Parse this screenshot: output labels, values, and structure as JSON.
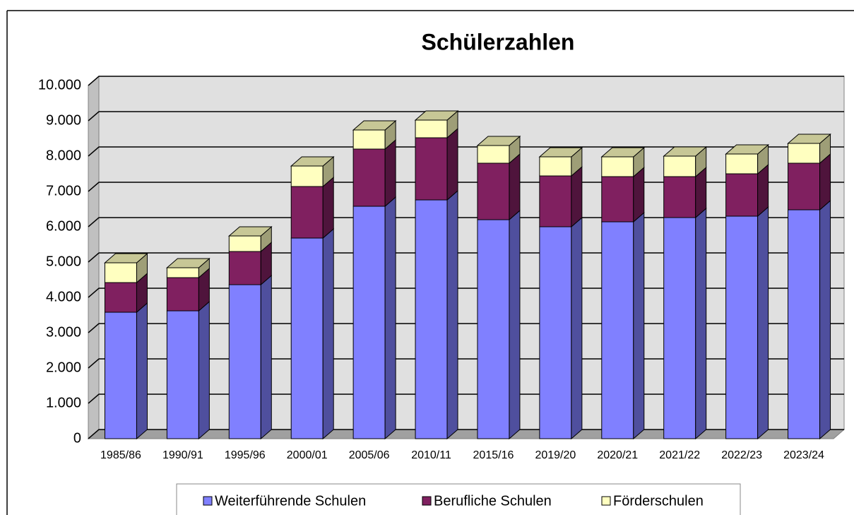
{
  "chart_data": {
    "type": "bar3d_stacked",
    "title": "Schülerzahlen",
    "categories": [
      "1985/86",
      "1990/91",
      "1995/96",
      "2000/01",
      "2005/06",
      "2010/11",
      "2015/16",
      "2019/20",
      "2020/21",
      "2021/22",
      "2022/23",
      "2023/24"
    ],
    "series": [
      {
        "name": "Weiterführende Schulen",
        "color": "#8080ff",
        "values": [
          3580,
          3620,
          4360,
          5680,
          6580,
          6760,
          6200,
          6000,
          6140,
          6260,
          6300,
          6480
        ]
      },
      {
        "name": "Berufliche Schulen",
        "color": "#802060",
        "values": [
          840,
          940,
          940,
          1460,
          1620,
          1760,
          1600,
          1440,
          1280,
          1160,
          1200,
          1320
        ]
      },
      {
        "name": "Förderschulen",
        "color": "#ffffc0",
        "values": [
          560,
          280,
          440,
          580,
          540,
          500,
          500,
          540,
          560,
          580,
          560,
          560
        ]
      }
    ],
    "ylim": [
      0,
      10000
    ],
    "yticks": [
      0,
      {
        "value": 1000,
        "label": "1.000"
      },
      {
        "value": 2000,
        "label": "2.000"
      },
      {
        "value": 3000,
        "label": "3.000"
      },
      {
        "value": 4000,
        "label": "4.000"
      },
      {
        "value": 5000,
        "label": "5.000"
      },
      {
        "value": 6000,
        "label": "6.000"
      },
      {
        "value": 7000,
        "label": "7.000"
      },
      {
        "value": 8000,
        "label": "8.000"
      },
      {
        "value": 9000,
        "label": "9.000"
      },
      {
        "value": 10000,
        "label": "10.000"
      }
    ],
    "grid": true,
    "legend": "bottom"
  }
}
